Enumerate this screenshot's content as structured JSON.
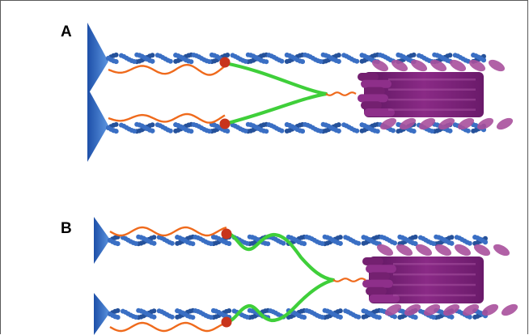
{
  "panels": [
    {
      "label": "A",
      "state": "straight"
    },
    {
      "label": "B",
      "state": "wrapped"
    }
  ],
  "colors": {
    "filament": "#3a6fc4",
    "filament_dark": "#25519a",
    "anchor": "#2d64bd",
    "tether": "#ef6a1c",
    "node": "#c8341c",
    "linker": "#3fcf3a",
    "bundle": "#7a1f78",
    "bundle_light": "#a8509c",
    "frame": "#5a5a5a"
  }
}
